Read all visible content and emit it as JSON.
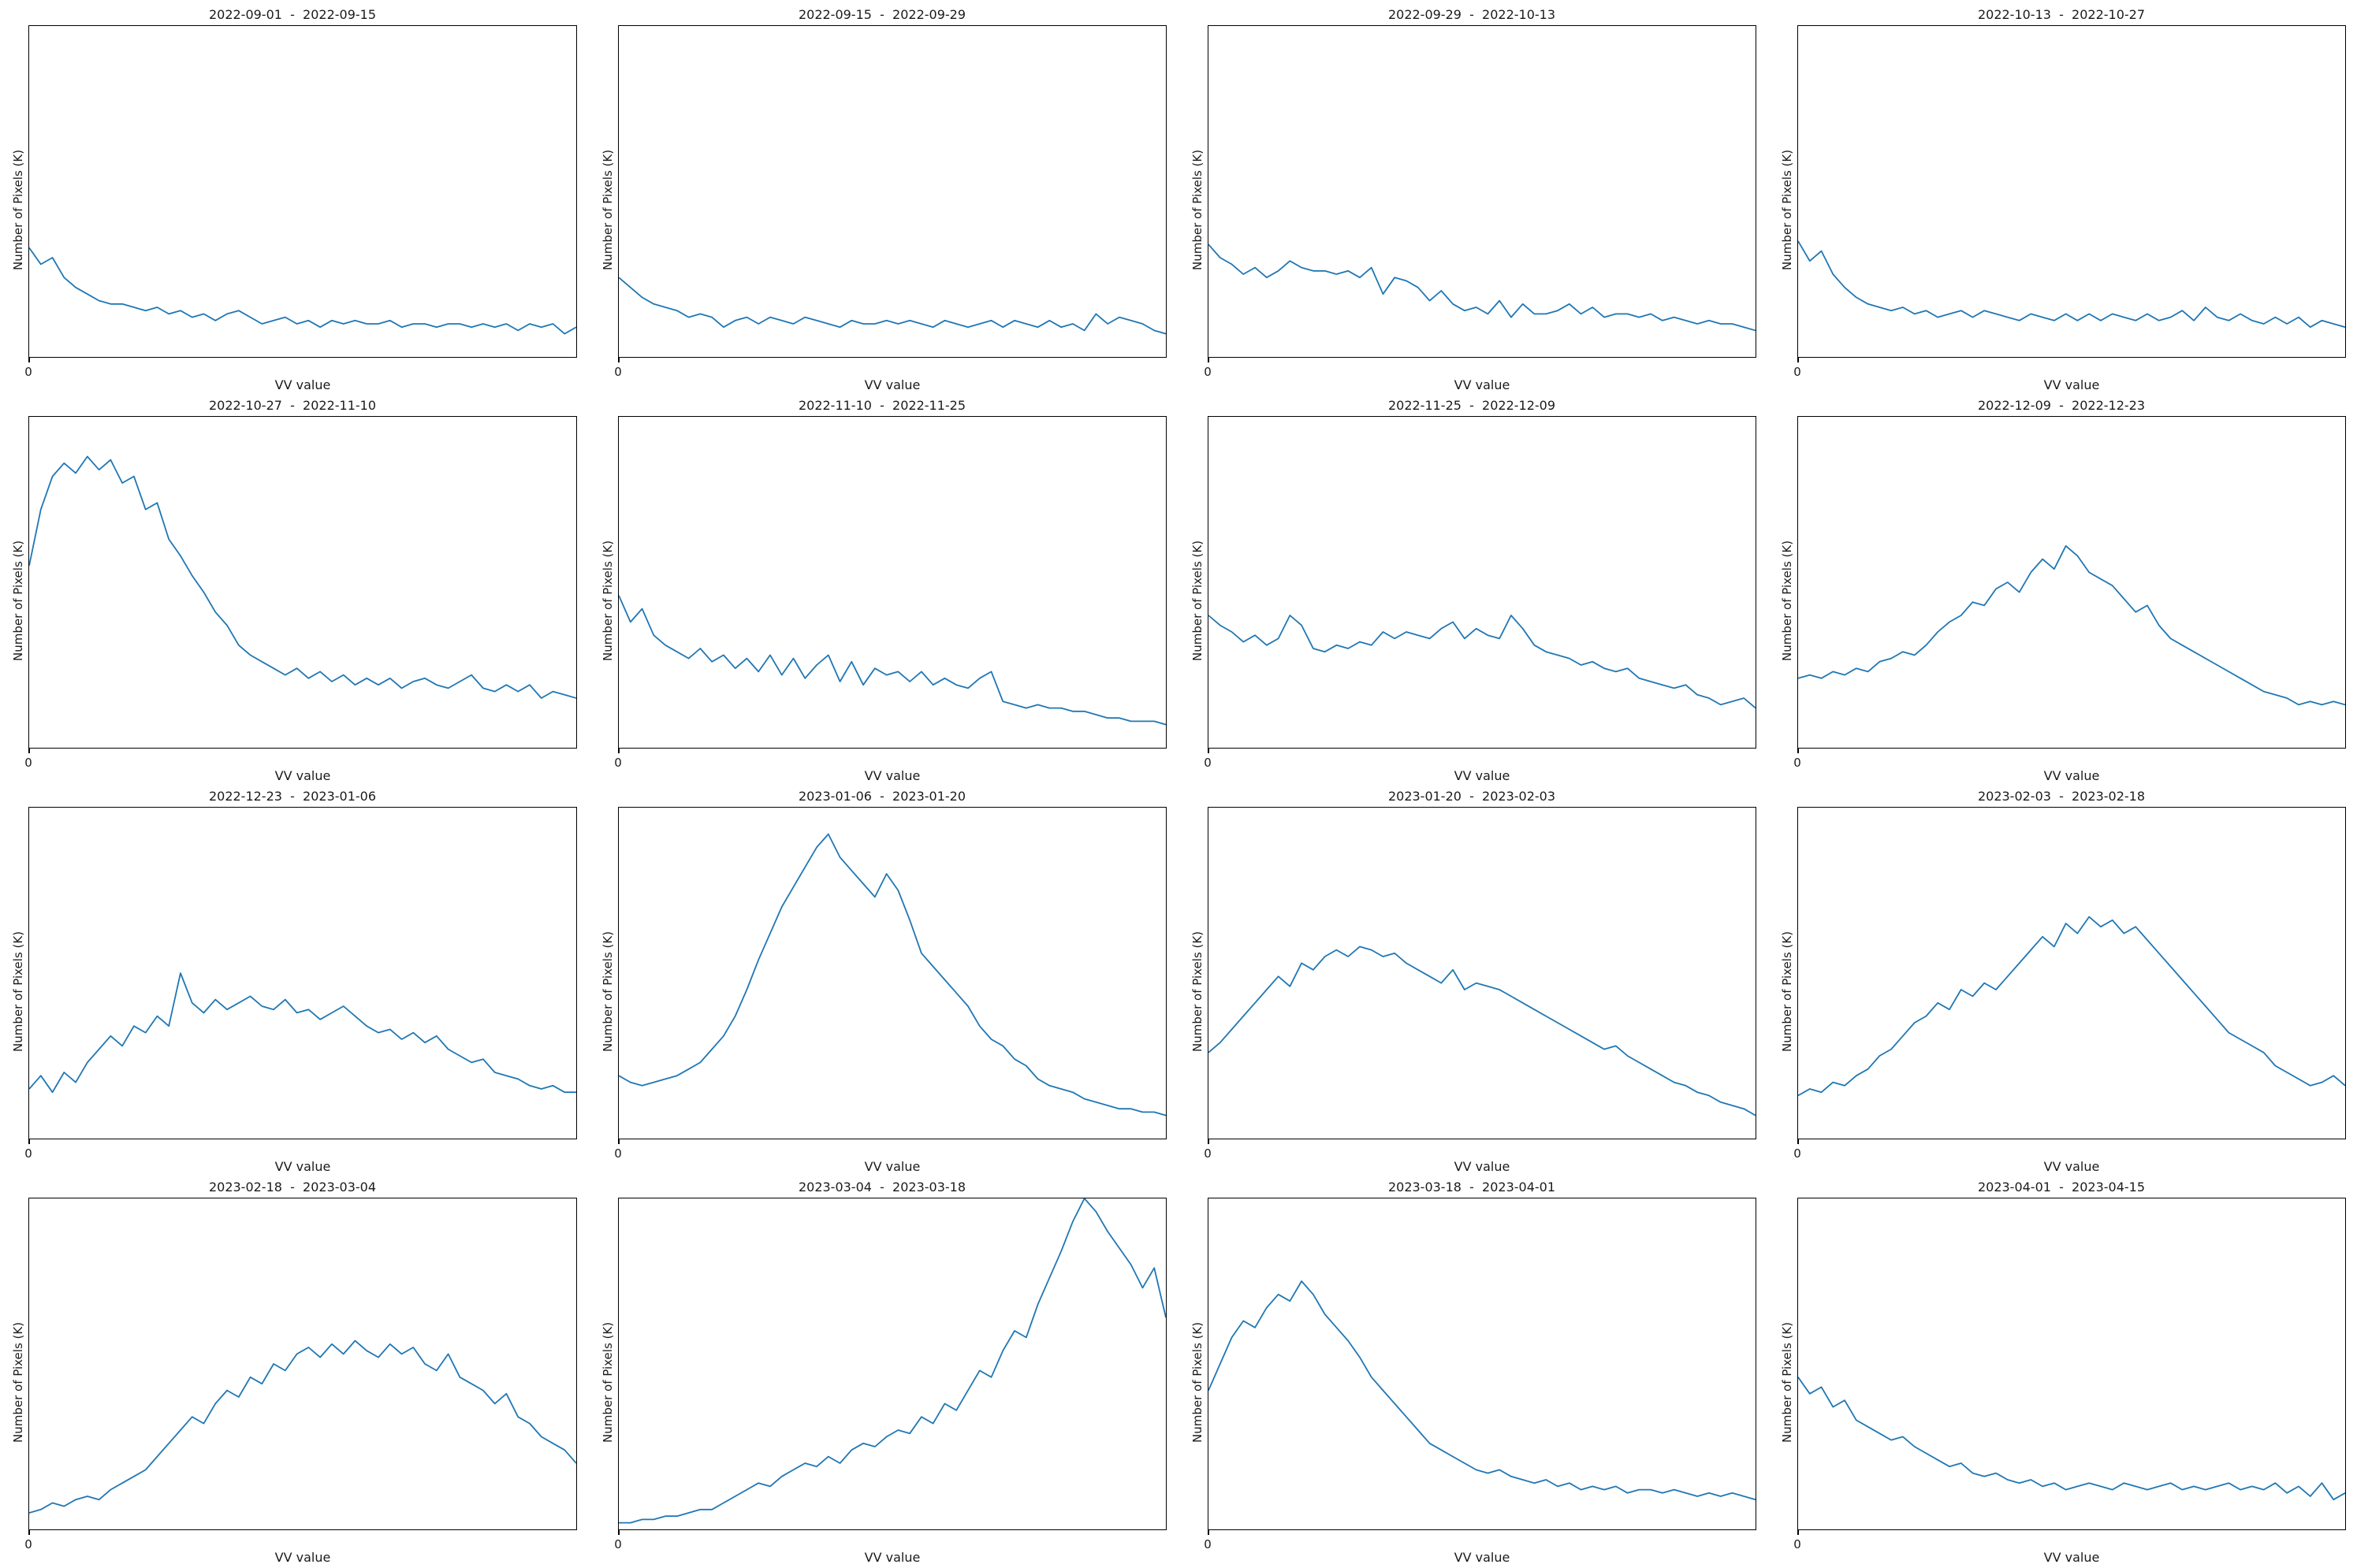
{
  "figure": {
    "background": "#ffffff",
    "line_color": "#1f77b4",
    "grid_lines": "off",
    "legend": "none",
    "layout": "4x4 subplot grid"
  },
  "chart_data": [
    {
      "type": "line",
      "title": "2022-09-01  -  2022-09-15",
      "xlabel": "VV value",
      "ylabel": "Number of Pixels (K)",
      "x_tick": "0",
      "y_units": "relative height, percent of plot (no y ticks shown)",
      "values": [
        33,
        28,
        30,
        24,
        21,
        19,
        17,
        16,
        16,
        15,
        14,
        15,
        13,
        14,
        12,
        13,
        11,
        13,
        14,
        12,
        10,
        11,
        12,
        10,
        11,
        9,
        11,
        10,
        11,
        10,
        10,
        11,
        9,
        10,
        10,
        9,
        10,
        10,
        9,
        10,
        9,
        10,
        8,
        10,
        9,
        10,
        7,
        9
      ]
    },
    {
      "type": "line",
      "title": "2022-09-15  -  2022-09-29",
      "xlabel": "VV value",
      "ylabel": "Number of Pixels (K)",
      "x_tick": "0",
      "y_units": "relative height, percent of plot (no y ticks shown)",
      "values": [
        24,
        21,
        18,
        16,
        15,
        14,
        12,
        13,
        12,
        9,
        11,
        12,
        10,
        12,
        11,
        10,
        12,
        11,
        10,
        9,
        11,
        10,
        10,
        11,
        10,
        11,
        10,
        9,
        11,
        10,
        9,
        10,
        11,
        9,
        11,
        10,
        9,
        11,
        9,
        10,
        8,
        13,
        10,
        12,
        11,
        10,
        8,
        7
      ]
    },
    {
      "type": "line",
      "title": "2022-09-29  -  2022-10-13",
      "xlabel": "VV value",
      "ylabel": "Number of Pixels (K)",
      "x_tick": "0",
      "y_units": "relative height, percent of plot (no y ticks shown)",
      "values": [
        34,
        30,
        28,
        25,
        27,
        24,
        26,
        29,
        27,
        26,
        26,
        25,
        26,
        24,
        27,
        19,
        24,
        23,
        21,
        17,
        20,
        16,
        14,
        15,
        13,
        17,
        12,
        16,
        13,
        13,
        14,
        16,
        13,
        15,
        12,
        13,
        13,
        12,
        13,
        11,
        12,
        11,
        10,
        11,
        10,
        10,
        9,
        8
      ]
    },
    {
      "type": "line",
      "title": "2022-10-13  -  2022-10-27",
      "xlabel": "VV value",
      "ylabel": "Number of Pixels (K)",
      "x_tick": "0",
      "y_units": "relative height, percent of plot (no y ticks shown)",
      "values": [
        35,
        29,
        32,
        25,
        21,
        18,
        16,
        15,
        14,
        15,
        13,
        14,
        12,
        13,
        14,
        12,
        14,
        13,
        12,
        11,
        13,
        12,
        11,
        13,
        11,
        13,
        11,
        13,
        12,
        11,
        13,
        11,
        12,
        14,
        11,
        15,
        12,
        11,
        13,
        11,
        10,
        12,
        10,
        12,
        9,
        11,
        10,
        9
      ]
    },
    {
      "type": "line",
      "title": "2022-10-27  -  2022-11-10",
      "xlabel": "VV value",
      "ylabel": "Number of Pixels (K)",
      "x_tick": "0",
      "y_units": "relative height, percent of plot (no y ticks shown)",
      "values": [
        55,
        72,
        82,
        86,
        83,
        88,
        84,
        87,
        80,
        82,
        72,
        74,
        63,
        58,
        52,
        47,
        41,
        37,
        31,
        28,
        26,
        24,
        22,
        24,
        21,
        23,
        20,
        22,
        19,
        21,
        19,
        21,
        18,
        20,
        21,
        19,
        18,
        20,
        22,
        18,
        17,
        19,
        17,
        19,
        15,
        17,
        16,
        15
      ]
    },
    {
      "type": "line",
      "title": "2022-11-10  -  2022-11-25",
      "xlabel": "VV value",
      "ylabel": "Number of Pixels (K)",
      "x_tick": "0",
      "y_units": "relative height, percent of plot (no y ticks shown)",
      "values": [
        46,
        38,
        42,
        34,
        31,
        29,
        27,
        30,
        26,
        28,
        24,
        27,
        23,
        28,
        22,
        27,
        21,
        25,
        28,
        20,
        26,
        19,
        24,
        22,
        23,
        20,
        23,
        19,
        21,
        19,
        18,
        21,
        23,
        14,
        13,
        12,
        13,
        12,
        12,
        11,
        11,
        10,
        9,
        9,
        8,
        8,
        8,
        7
      ]
    },
    {
      "type": "line",
      "title": "2022-11-25  -  2022-12-09",
      "xlabel": "VV value",
      "ylabel": "Number of Pixels (K)",
      "x_tick": "0",
      "y_units": "relative height, percent of plot (no y ticks shown)",
      "values": [
        40,
        37,
        35,
        32,
        34,
        31,
        33,
        40,
        37,
        30,
        29,
        31,
        30,
        32,
        31,
        35,
        33,
        35,
        34,
        33,
        36,
        38,
        33,
        36,
        34,
        33,
        40,
        36,
        31,
        29,
        28,
        27,
        25,
        26,
        24,
        23,
        24,
        21,
        20,
        19,
        18,
        19,
        16,
        15,
        13,
        14,
        15,
        12
      ]
    },
    {
      "type": "line",
      "title": "2022-12-09  -  2022-12-23",
      "xlabel": "VV value",
      "ylabel": "Number of Pixels (K)",
      "x_tick": "0",
      "y_units": "relative height, percent of plot (no y ticks shown)",
      "values": [
        21,
        22,
        21,
        23,
        22,
        24,
        23,
        26,
        27,
        29,
        28,
        31,
        35,
        38,
        40,
        44,
        43,
        48,
        50,
        47,
        53,
        57,
        54,
        61,
        58,
        53,
        51,
        49,
        45,
        41,
        43,
        37,
        33,
        31,
        29,
        27,
        25,
        23,
        21,
        19,
        17,
        16,
        15,
        13,
        14,
        13,
        14,
        13
      ]
    },
    {
      "type": "line",
      "title": "2022-12-23  -  2023-01-06",
      "xlabel": "VV value",
      "ylabel": "Number of Pixels (K)",
      "x_tick": "0",
      "y_units": "relative height, percent of plot (no y ticks shown)",
      "values": [
        15,
        19,
        14,
        20,
        17,
        23,
        27,
        31,
        28,
        34,
        32,
        37,
        34,
        50,
        41,
        38,
        42,
        39,
        41,
        43,
        40,
        39,
        42,
        38,
        39,
        36,
        38,
        40,
        37,
        34,
        32,
        33,
        30,
        32,
        29,
        31,
        27,
        25,
        23,
        24,
        20,
        19,
        18,
        16,
        15,
        16,
        14,
        14
      ]
    },
    {
      "type": "line",
      "title": "2023-01-06  -  2023-01-20",
      "xlabel": "VV value",
      "ylabel": "Number of Pixels (K)",
      "x_tick": "0",
      "y_units": "relative height, percent of plot (no y ticks shown)",
      "values": [
        19,
        17,
        16,
        17,
        18,
        19,
        21,
        23,
        27,
        31,
        37,
        45,
        54,
        62,
        70,
        76,
        82,
        88,
        92,
        85,
        81,
        77,
        73,
        80,
        75,
        66,
        56,
        52,
        48,
        44,
        40,
        34,
        30,
        28,
        24,
        22,
        18,
        16,
        15,
        14,
        12,
        11,
        10,
        9,
        9,
        8,
        8,
        7
      ]
    },
    {
      "type": "line",
      "title": "2023-01-20  -  2023-02-03",
      "xlabel": "VV value",
      "ylabel": "Number of Pixels (K)",
      "x_tick": "0",
      "y_units": "relative height, percent of plot (no y ticks shown)",
      "values": [
        26,
        29,
        33,
        37,
        41,
        45,
        49,
        46,
        53,
        51,
        55,
        57,
        55,
        58,
        57,
        55,
        56,
        53,
        51,
        49,
        47,
        51,
        45,
        47,
        46,
        45,
        43,
        41,
        39,
        37,
        35,
        33,
        31,
        29,
        27,
        28,
        25,
        23,
        21,
        19,
        17,
        16,
        14,
        13,
        11,
        10,
        9,
        7
      ]
    },
    {
      "type": "line",
      "title": "2023-02-03  -  2023-02-18",
      "xlabel": "VV value",
      "ylabel": "Number of Pixels (K)",
      "x_tick": "0",
      "y_units": "relative height, percent of plot (no y ticks shown)",
      "values": [
        13,
        15,
        14,
        17,
        16,
        19,
        21,
        25,
        27,
        31,
        35,
        37,
        41,
        39,
        45,
        43,
        47,
        45,
        49,
        53,
        57,
        61,
        58,
        65,
        62,
        67,
        64,
        66,
        62,
        64,
        60,
        56,
        52,
        48,
        44,
        40,
        36,
        32,
        30,
        28,
        26,
        22,
        20,
        18,
        16,
        17,
        19,
        16
      ]
    },
    {
      "type": "line",
      "title": "2023-02-18  -  2023-03-04",
      "xlabel": "VV value",
      "ylabel": "Number of Pixels (K)",
      "x_tick": "0",
      "y_units": "relative height, percent of plot (no y ticks shown)",
      "values": [
        5,
        6,
        8,
        7,
        9,
        10,
        9,
        12,
        14,
        16,
        18,
        22,
        26,
        30,
        34,
        32,
        38,
        42,
        40,
        46,
        44,
        50,
        48,
        53,
        55,
        52,
        56,
        53,
        57,
        54,
        52,
        56,
        53,
        55,
        50,
        48,
        53,
        46,
        44,
        42,
        38,
        41,
        34,
        32,
        28,
        26,
        24,
        20
      ]
    },
    {
      "type": "line",
      "title": "2023-03-04  -  2023-03-18",
      "xlabel": "VV value",
      "ylabel": "Number of Pixels (K)",
      "x_tick": "0",
      "y_units": "relative height, percent of plot (no y ticks shown)",
      "values": [
        2,
        2,
        3,
        3,
        4,
        4,
        5,
        6,
        6,
        8,
        10,
        12,
        14,
        13,
        16,
        18,
        20,
        19,
        22,
        20,
        24,
        26,
        25,
        28,
        30,
        29,
        34,
        32,
        38,
        36,
        42,
        48,
        46,
        54,
        60,
        58,
        68,
        76,
        84,
        93,
        100,
        96,
        90,
        85,
        80,
        73,
        79,
        64
      ]
    },
    {
      "type": "line",
      "title": "2023-03-18  -  2023-04-01",
      "xlabel": "VV value",
      "ylabel": "Number of Pixels (K)",
      "x_tick": "0",
      "y_units": "relative height, percent of plot (no y ticks shown)",
      "values": [
        42,
        50,
        58,
        63,
        61,
        67,
        71,
        69,
        75,
        71,
        65,
        61,
        57,
        52,
        46,
        42,
        38,
        34,
        30,
        26,
        24,
        22,
        20,
        18,
        17,
        18,
        16,
        15,
        14,
        15,
        13,
        14,
        12,
        13,
        12,
        13,
        11,
        12,
        12,
        11,
        12,
        11,
        10,
        11,
        10,
        11,
        10,
        9
      ]
    },
    {
      "type": "line",
      "title": "2023-04-01  -  2023-04-15",
      "xlabel": "VV value",
      "ylabel": "Number of Pixels (K)",
      "x_tick": "0",
      "y_units": "relative height, percent of plot (no y ticks shown)",
      "values": [
        46,
        41,
        43,
        37,
        39,
        33,
        31,
        29,
        27,
        28,
        25,
        23,
        21,
        19,
        20,
        17,
        16,
        17,
        15,
        14,
        15,
        13,
        14,
        12,
        13,
        14,
        13,
        12,
        14,
        13,
        12,
        13,
        14,
        12,
        13,
        12,
        13,
        14,
        12,
        13,
        12,
        14,
        11,
        13,
        10,
        14,
        9,
        11
      ]
    }
  ]
}
